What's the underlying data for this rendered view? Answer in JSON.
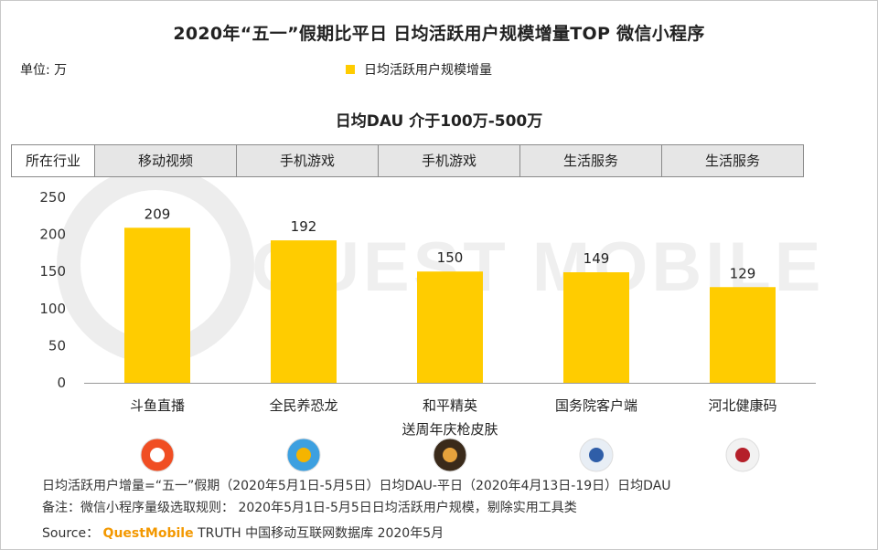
{
  "title": "2020年“五一”假期比平日 日均活跃用户规模增量TOP 微信小程序",
  "unit_label": "单位: 万",
  "legend_label": "日均活跃用户规模增量",
  "subtitle": "日均DAU 介于100万-500万",
  "industry_header": "所在行业",
  "industries": [
    "移动视频",
    "手机游戏",
    "手机游戏",
    "生活服务",
    "生活服务"
  ],
  "watermark": "QUEST MOBILE",
  "colors": {
    "bar": "#FFCC00",
    "axis": "#999999",
    "brand": "#F39800"
  },
  "chart_data": {
    "type": "bar",
    "categories": [
      "斗鱼直播",
      "全民养恐龙",
      "和平精英\n送周年庆枪皮肤",
      "国务院客户端",
      "河北健康码"
    ],
    "values": [
      209,
      192,
      150,
      149,
      129
    ],
    "title": "日均DAU 介于100万-500万",
    "xlabel": "",
    "ylabel": "",
    "yticks": [
      0,
      50,
      100,
      150,
      200,
      250
    ],
    "ylim": [
      0,
      250
    ]
  },
  "app_icons": [
    "douyu-app-icon",
    "dinosaur-game-app-icon",
    "pubg-app-icon",
    "gov-council-app-icon",
    "hebei-health-code-app-icon"
  ],
  "footer": {
    "note1": "日均活跃用户增量=“五一”假期（2020年5月1日-5月5日）日均DAU-平日（2020年4月13日-19日）日均DAU",
    "note2": "备注：微信小程序量级选取规则： 2020年5月1日-5月5日日均活跃用户规模，剔除实用工具类",
    "source_prefix": "Source：",
    "source_brand": "QuestMobile",
    "source_rest": " TRUTH 中国移动互联网数据库 2020年5月"
  }
}
